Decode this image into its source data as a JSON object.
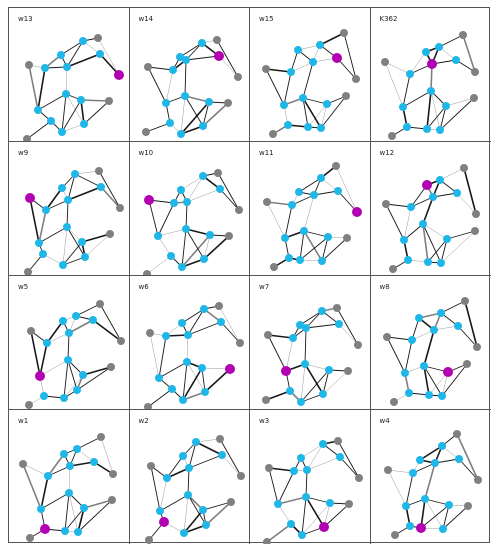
{
  "figure": {
    "colors": {
      "default_node": "#1fb7e8",
      "highlight_node": "#b200b2",
      "gray_node": "#808080",
      "edge": "#000000",
      "panel_border": "#555555"
    },
    "panels": [
      {
        "label": "w13",
        "highlight": 0
      },
      {
        "label": "w14",
        "highlight": 1
      },
      {
        "label": "w15",
        "highlight": 2
      },
      {
        "label": "K362",
        "highlight": 3
      },
      {
        "label": "w9",
        "highlight": 4
      },
      {
        "label": "w10",
        "highlight": 5
      },
      {
        "label": "w11",
        "highlight": 6
      },
      {
        "label": "w12",
        "highlight": 7
      },
      {
        "label": "w5",
        "highlight": 8
      },
      {
        "label": "w6",
        "highlight": 9
      },
      {
        "label": "w7",
        "highlight": 10
      },
      {
        "label": "w8",
        "highlight": 11
      },
      {
        "label": "w1",
        "highlight": 12
      },
      {
        "label": "w2",
        "highlight": 13
      },
      {
        "label": "w3",
        "highlight": 14
      },
      {
        "label": "w4",
        "highlight": 15
      }
    ]
  }
}
